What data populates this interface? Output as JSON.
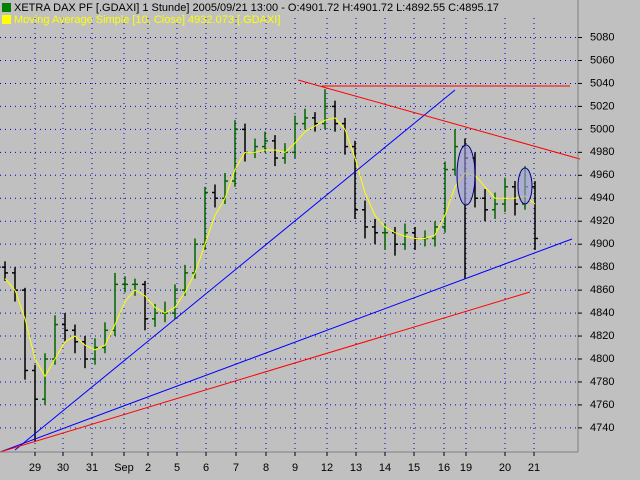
{
  "chart_data": {
    "type": "ohlc",
    "title": "XETRA DAX PF [.GDAXI]  1 Stunde] 2005/09/21 13:00 - O:4901.72 H:4901.72 L:4892.55 C:4895.17",
    "open": [
      4880,
      4875,
      4860,
      4790,
      4765,
      4800,
      4830,
      4825,
      4815,
      4800,
      4810,
      4825,
      4865,
      4865,
      4865,
      4835,
      4840,
      4840,
      4860,
      4875,
      4900,
      4945,
      4940,
      4955,
      5000,
      4980,
      4985,
      4990,
      4975,
      4980,
      5005,
      5010,
      5005,
      5020,
      5005,
      4985,
      4930,
      4915,
      4910,
      4910,
      4900,
      4910,
      4905,
      4905,
      4915,
      4965,
      4985,
      4975,
      4940,
      4930,
      4935,
      4950,
      4935,
      4950
    ],
    "high": [
      4885,
      4880,
      4862,
      4795,
      4805,
      4838,
      4840,
      4830,
      4820,
      4818,
      4832,
      4875,
      4872,
      4870,
      4868,
      4848,
      4850,
      4865,
      4882,
      4905,
      4950,
      4952,
      4962,
      5008,
      5005,
      4992,
      4998,
      4995,
      4988,
      5012,
      5018,
      5015,
      5035,
      5025,
      5010,
      4990,
      4938,
      4922,
      4918,
      4915,
      4918,
      4915,
      4912,
      4920,
      4972,
      5000,
      4992,
      4980,
      4948,
      4945,
      4958,
      4955,
      4968,
      4955
    ],
    "low": [
      4868,
      4850,
      4782,
      4728,
      4760,
      4795,
      4815,
      4805,
      4792,
      4795,
      4805,
      4820,
      4858,
      4855,
      4825,
      4828,
      4832,
      4835,
      4855,
      4870,
      4895,
      4932,
      4935,
      4950,
      4972,
      4975,
      4980,
      4968,
      4970,
      4975,
      5000,
      4998,
      5000,
      4998,
      4978,
      4922,
      4905,
      4900,
      4895,
      4890,
      4895,
      4895,
      4898,
      4898,
      4910,
      4960,
      4870,
      4932,
      4920,
      4922,
      4928,
      4925,
      4930,
      4895
    ],
    "close": [
      4875,
      4860,
      4790,
      4765,
      4800,
      4830,
      4825,
      4815,
      4800,
      4810,
      4825,
      4865,
      4865,
      4865,
      4835,
      4840,
      4840,
      4860,
      4875,
      4900,
      4945,
      4940,
      4955,
      5000,
      4980,
      4985,
      4990,
      4975,
      4980,
      5005,
      5010,
      5005,
      5020,
      5005,
      4985,
      4930,
      4915,
      4910,
      4910,
      4900,
      4910,
      4905,
      4905,
      4915,
      4965,
      4985,
      4975,
      4940,
      4930,
      4935,
      4950,
      4935,
      4950,
      4905
    ],
    "up_color": "#006400",
    "down_color": "#000000",
    "ma": {
      "name": "Moving Average Simple [10, Close] 4932.073 [.GDAXI]",
      "color": "#ffff00",
      "values": [
        4870,
        4860,
        4835,
        4800,
        4785,
        4800,
        4815,
        4820,
        4812,
        4808,
        4812,
        4830,
        4850,
        4860,
        4855,
        4845,
        4840,
        4845,
        4858,
        4875,
        4900,
        4925,
        4940,
        4965,
        4980,
        4980,
        4982,
        4982,
        4980,
        4988,
        4998,
        5003,
        5008,
        5010,
        5000,
        4975,
        4945,
        4925,
        4915,
        4910,
        4907,
        4905,
        4905,
        4908,
        4925,
        4950,
        4962,
        4960,
        4950,
        4940,
        4940,
        4940,
        4942,
        4935
      ]
    },
    "xlim": [
      -0.5,
      57.3
    ],
    "ylim": [
      4719,
      5097
    ],
    "xticks": [
      {
        "value": 3,
        "label": "29"
      },
      {
        "value": 5.8,
        "label": "30"
      },
      {
        "value": 8.7,
        "label": "31"
      },
      {
        "value": 11.9,
        "label": "Sep"
      },
      {
        "value": 14.3,
        "label": "2"
      },
      {
        "value": 17.2,
        "label": "5"
      },
      {
        "value": 20.1,
        "label": "6"
      },
      {
        "value": 23.1,
        "label": "7"
      },
      {
        "value": 26.1,
        "label": "8"
      },
      {
        "value": 29,
        "label": "9"
      },
      {
        "value": 32.2,
        "label": "12"
      },
      {
        "value": 35.1,
        "label": "13"
      },
      {
        "value": 38,
        "label": "14"
      },
      {
        "value": 40.9,
        "label": "15"
      },
      {
        "value": 43.9,
        "label": "16"
      },
      {
        "value": 46.1,
        "label": "19"
      },
      {
        "value": 50,
        "label": "20"
      },
      {
        "value": 52.9,
        "label": "21"
      }
    ],
    "yticks": [
      4740,
      4760,
      4780,
      4800,
      4820,
      4840,
      4860,
      4880,
      4900,
      4920,
      4940,
      4960,
      4980,
      5000,
      5020,
      5040,
      5060,
      5080
    ],
    "grid": true
  }
}
